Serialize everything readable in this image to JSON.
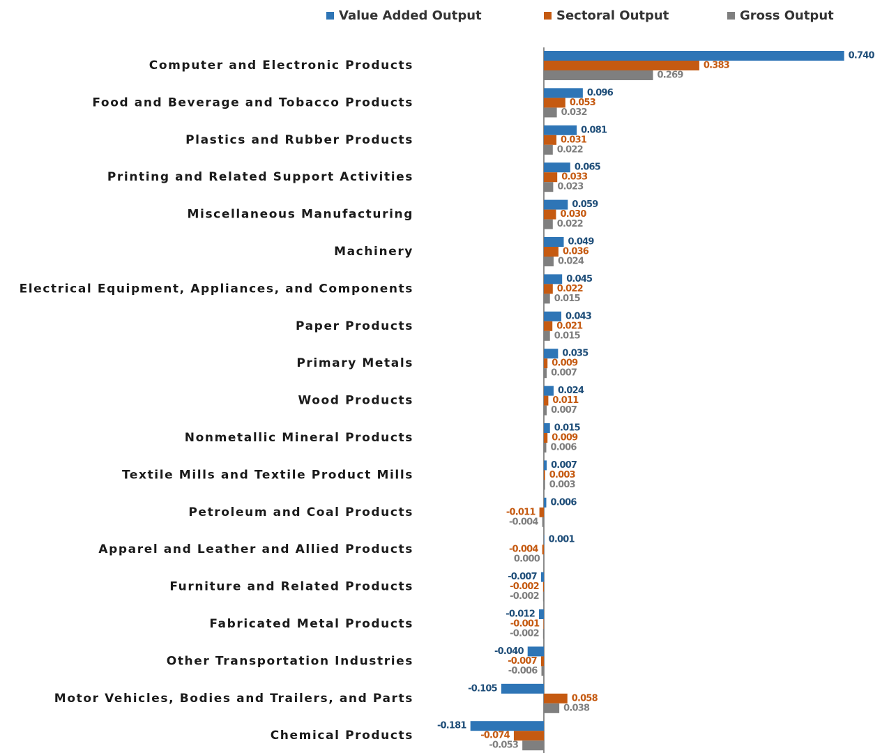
{
  "chart_data": {
    "type": "barh",
    "categories": [
      "Computer and Electronic Products",
      "Food and Beverage and Tobacco Products",
      "Plastics and Rubber Products",
      "Printing and Related Support Activities",
      "Miscellaneous Manufacturing",
      "Machinery",
      "Electrical Equipment, Appliances, and Components",
      "Paper Products",
      "Primary Metals",
      "Wood Products",
      "Nonmetallic Mineral Products",
      "Textile Mills and Textile Product Mills",
      "Petroleum and Coal Products",
      "Apparel and Leather and Allied Products",
      "Furniture and Related Products",
      "Fabricated Metal Products",
      "Other Transportation Industries",
      "Motor Vehicles, Bodies and Trailers, and Parts",
      "Chemical Products"
    ],
    "series": [
      {
        "name": "Value Added Output",
        "color": "#2e75b6",
        "values": [
          0.74,
          0.096,
          0.081,
          0.065,
          0.059,
          0.049,
          0.045,
          0.043,
          0.035,
          0.024,
          0.015,
          0.007,
          0.006,
          0.001,
          -0.007,
          -0.012,
          -0.04,
          -0.105,
          -0.181
        ],
        "value_labels": [
          "0.740",
          "0.096",
          "0.081",
          "0.065",
          "0.059",
          "0.049",
          "0.045",
          "0.043",
          "0.035",
          "0.024",
          "0.015",
          "0.007",
          "0.006",
          "0.001",
          "-0.007",
          "-0.012",
          "-0.040",
          "-0.105",
          "-0.181"
        ]
      },
      {
        "name": "Sectoral Output",
        "color": "#c55a11",
        "values": [
          0.383,
          0.053,
          0.031,
          0.033,
          0.03,
          0.036,
          0.022,
          0.021,
          0.009,
          0.011,
          0.009,
          0.003,
          -0.011,
          -0.004,
          -0.002,
          -0.001,
          -0.007,
          0.058,
          -0.074
        ],
        "value_labels": [
          "0.383",
          "0.053",
          "0.031",
          "0.033",
          "0.030",
          "0.036",
          "0.022",
          "0.021",
          "0.009",
          "0.011",
          "0.009",
          "0.003",
          "-0.011",
          "-0.004",
          "-0.002",
          "-0.001",
          "-0.007",
          "0.058",
          "-0.074"
        ]
      },
      {
        "name": "Gross Output",
        "color": "#7f7f7f",
        "values": [
          0.269,
          0.032,
          0.022,
          0.023,
          0.022,
          0.024,
          0.015,
          0.015,
          0.007,
          0.007,
          0.006,
          0.003,
          -0.004,
          0,
          -0.002,
          -0.002,
          -0.006,
          0.038,
          -0.053
        ],
        "value_labels": [
          "0.269",
          "0.032",
          "0.022",
          "0.023",
          "0.022",
          "0.024",
          "0.015",
          "0.015",
          "0.007",
          "0.007",
          "0.006",
          "0.003",
          "-0.004",
          "0.000",
          "-0.002",
          "-0.002",
          "-0.006",
          "0.038",
          "-0.053"
        ]
      }
    ],
    "xlim": [
      -0.25,
      0.8
    ],
    "legend": "top"
  }
}
